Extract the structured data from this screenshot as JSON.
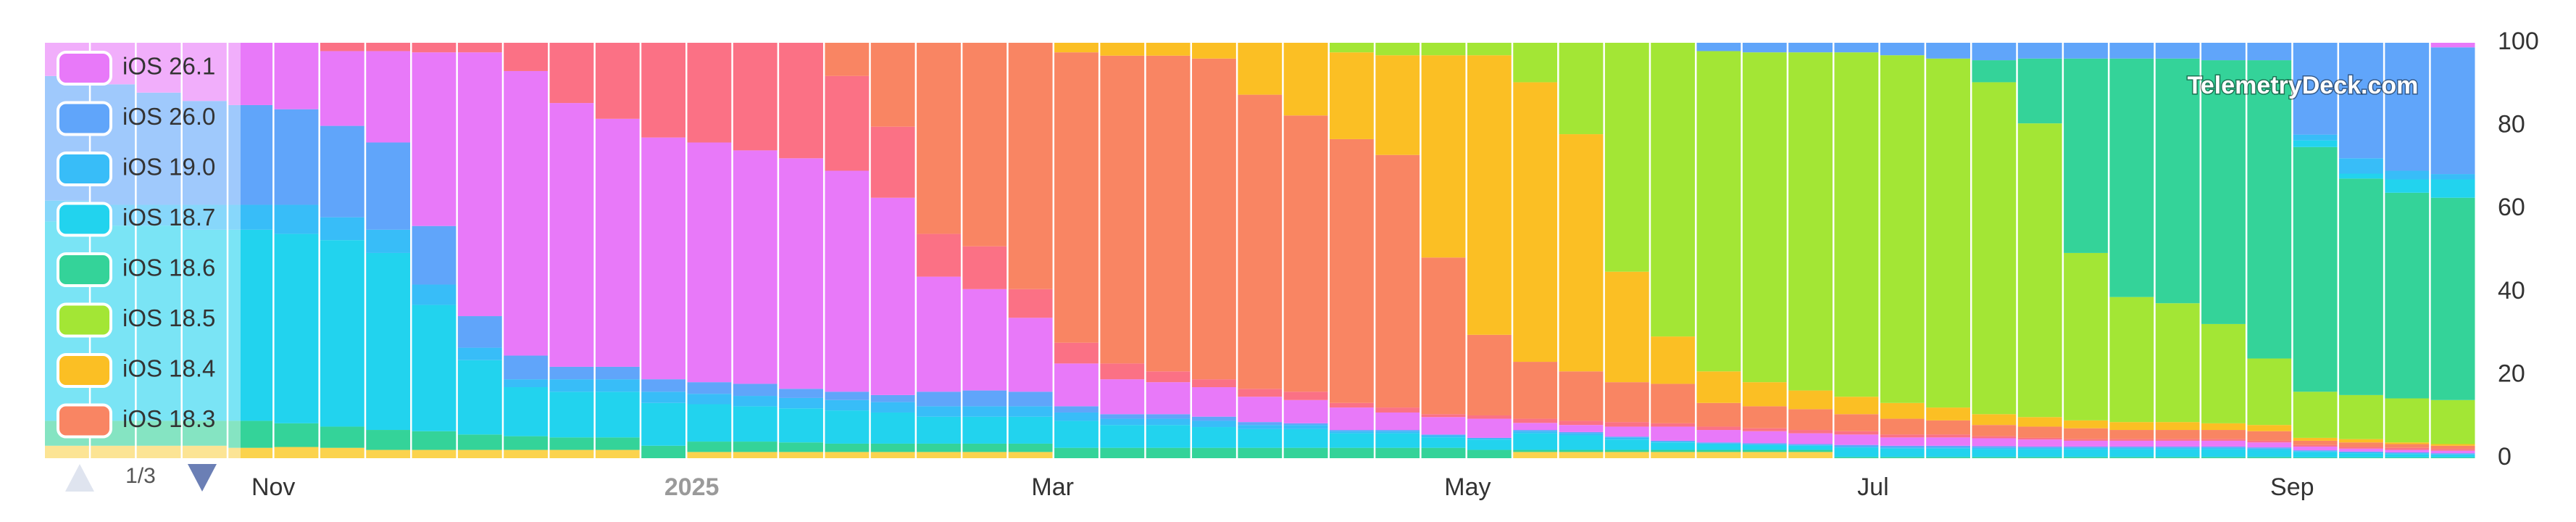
{
  "chart_data": {
    "type": "bar",
    "stacked": true,
    "legend": "top-left",
    "legend_page": "1/3",
    "annotations": [
      "TelemetryDeck.com"
    ],
    "grid": false,
    "ylim": [
      0,
      100
    ],
    "yticks": [
      0,
      20,
      40,
      60,
      80,
      100
    ],
    "categories": [
      null,
      null,
      null,
      null,
      "Nov",
      null,
      null,
      null,
      null,
      null,
      null,
      null,
      null,
      "2025",
      null,
      null,
      null,
      null,
      null,
      null,
      null,
      "Mar",
      null,
      null,
      null,
      null,
      null,
      null,
      null,
      null,
      "May",
      null,
      null,
      null,
      null,
      null,
      null,
      null,
      null,
      "Jul",
      null,
      null,
      null,
      null,
      null,
      null,
      null,
      null,
      "Sep",
      null,
      null,
      null,
      null
    ],
    "series": [
      {
        "name": null,
        "color": "#fbd34d",
        "values": [
          3,
          3,
          3,
          3,
          2.5,
          2.7,
          2.5,
          2,
          2,
          2,
          2,
          2,
          2,
          0,
          1.5,
          1.5,
          1.5,
          1.5,
          1.5,
          1.5,
          1.5,
          1.5,
          0,
          0,
          0,
          0,
          0,
          0,
          0,
          0,
          0,
          0,
          1.5,
          1.5,
          1.5,
          1.5,
          1.5,
          1.5,
          1.5,
          0,
          0,
          0,
          0,
          0,
          0,
          0,
          0,
          0,
          0,
          0,
          0,
          0,
          0
        ]
      },
      {
        "name": null,
        "color": "#34d399",
        "values": [
          6,
          6,
          6,
          6,
          6.5,
          5.7,
          5.1,
          4.8,
          4.5,
          3.7,
          3.3,
          3,
          3,
          3,
          2.5,
          2.5,
          2.3,
          2,
          2,
          2,
          2,
          2,
          2.5,
          2.5,
          2.5,
          2.5,
          2.5,
          2.5,
          2.5,
          2.5,
          2.5,
          2,
          0.5,
          0.5,
          0.5,
          0.5,
          0.5,
          0.5,
          0.5,
          0.3,
          0.3,
          0.3,
          0.3,
          0.3,
          0.3,
          0.3,
          0.3,
          0.3,
          0.3,
          0.2,
          0.2,
          0.2,
          0.2
        ]
      },
      {
        "name": null,
        "color": "#22d3ee",
        "values": [
          48,
          47,
          47,
          46,
          46,
          45.6,
          44.9,
          42.6,
          30.4,
          17.9,
          11.8,
          11,
          11,
          10.3,
          9,
          8.5,
          8.2,
          8,
          7.5,
          6.5,
          6.5,
          6.5,
          6.5,
          5.5,
          5.5,
          5,
          4.5,
          4.5,
          3.5,
          3.5,
          2.5,
          2.5,
          4,
          3.5,
          2.5,
          1.8,
          1.4,
          1.2,
          1,
          2.2,
          2,
          2,
          1.9,
          1.9,
          1.9,
          1.9,
          1.9,
          1.9,
          1.7,
          1.3,
          1,
          0.8,
          0.6
        ]
      },
      {
        "name": null,
        "color": "#38bdf8",
        "values": [
          5,
          5,
          5,
          6,
          6,
          7,
          5.5,
          5.6,
          4.9,
          3,
          1.9,
          3,
          3,
          2.7,
          2.5,
          2.5,
          2.5,
          2.5,
          2.5,
          2.5,
          2.5,
          2.5,
          2,
          1.5,
          1.5,
          1.5,
          1,
          1,
          0.5,
          0.5,
          0.5,
          0.3,
          0.5,
          0.5,
          0.5,
          0.2,
          0.2,
          0.2,
          0.2,
          0.3,
          0.3,
          0.3,
          0.3,
          0.3,
          0.3,
          0.3,
          0.3,
          0.3,
          0.3,
          0.2,
          0.2,
          0.2,
          0.2
        ]
      },
      {
        "name": null,
        "color": "#60a5fa",
        "values": [
          30,
          29,
          27,
          25,
          24,
          23,
          22,
          21,
          14.1,
          7.6,
          5.7,
          3,
          3,
          3,
          2.8,
          2.9,
          2.2,
          2,
          1.7,
          3.5,
          3.8,
          3.5,
          1.5,
          1.1,
          1.1,
          1,
          0.7,
          0.4,
          0.3,
          0.3,
          0.2,
          0.1,
          0.3,
          0.3,
          0.2,
          0.2,
          0.2,
          0.2,
          0.2,
          0.4,
          0.4,
          0.4,
          0.4,
          0.3,
          0.3,
          0.3,
          0.3,
          0.3,
          0.3,
          0.2,
          0.2,
          0.2,
          0.2
        ]
      },
      {
        "name": null,
        "color": "#e879f9",
        "values": [
          8,
          10,
          12,
          14,
          15,
          16,
          18,
          22,
          41.8,
          63.5,
          68.5,
          63.5,
          59.7,
          58.2,
          57.7,
          56.2,
          55.5,
          53.2,
          47.5,
          27.7,
          24.4,
          17.8,
          10.3,
          8.4,
          7.7,
          7.1,
          6.1,
          5.6,
          5.4,
          4.2,
          4.2,
          4.6,
          1.7,
          1.7,
          2.4,
          3.4,
          3,
          2.9,
          2.6,
          2.5,
          2,
          2,
          1.9,
          1.7,
          1.4,
          1.4,
          1.4,
          1.4,
          1.2,
          0.9,
          0.7,
          0.6,
          0.6
        ]
      },
      {
        "name": null,
        "color": "#fb7185",
        "values": [
          0,
          0,
          0,
          0,
          0,
          0,
          2,
          2,
          2.3,
          2.3,
          6.8,
          14.5,
          18.3,
          22.8,
          24,
          25.9,
          27.8,
          22.8,
          17.1,
          10.3,
          10.3,
          6.9,
          5,
          3.8,
          2.6,
          1.9,
          1.9,
          2,
          1.1,
          1.2,
          0.7,
          0.8,
          1,
          1,
          1.1,
          0.8,
          0.8,
          0.7,
          0.8,
          0.8,
          0.7,
          0.7,
          0.5,
          0.4,
          0.4,
          0.4,
          0.4,
          0.4,
          0.4,
          0.4,
          0.4,
          0.5,
          0.4
        ]
      },
      {
        "name": "iOS 18.3",
        "color": "#f98563",
        "values": [
          0,
          0,
          0,
          0,
          0,
          0,
          0,
          0,
          0,
          0,
          0,
          0,
          0,
          0,
          0,
          0,
          0,
          8,
          20.2,
          46,
          49,
          59.3,
          69.9,
          74.1,
          76,
          77.2,
          70.8,
          66.5,
          63.5,
          60.8,
          37.7,
          19.4,
          13.7,
          11.9,
          9.6,
          9.5,
          5.7,
          5.3,
          5,
          4.1,
          3.8,
          3.4,
          2.7,
          2.7,
          2.6,
          2.2,
          2.2,
          2.2,
          2.3,
          1,
          1.1,
          0.9,
          0.8
        ]
      },
      {
        "name": "iOS 18.4",
        "color": "#fbbf24",
        "values": [
          0,
          0,
          0,
          0,
          0,
          0,
          0,
          0,
          0,
          0,
          0,
          0,
          0,
          0,
          0,
          0,
          0,
          0,
          0,
          0,
          0,
          0,
          2.3,
          3.1,
          3.1,
          3.8,
          12.5,
          17.5,
          20.9,
          24,
          48.7,
          67.3,
          67.3,
          57.1,
          26.6,
          11.4,
          7.6,
          5.8,
          4.5,
          4.2,
          3.8,
          3.1,
          2.6,
          2.3,
          1.9,
          1.9,
          1.9,
          1.6,
          1.5,
          0.7,
          0.8,
          0.4,
          0.4
        ]
      },
      {
        "name": "iOS 18.5",
        "color": "#a3e635",
        "values": [
          0,
          0,
          0,
          0,
          0,
          0,
          0,
          0,
          0,
          0,
          0,
          0,
          0,
          0,
          0,
          0,
          0,
          0,
          0,
          0,
          0,
          0,
          0,
          0,
          0,
          0,
          0,
          0,
          2.3,
          3,
          3,
          3,
          9.5,
          22,
          55.1,
          70.7,
          77.1,
          79.4,
          81.4,
          82.9,
          83.7,
          84,
          79.9,
          70.7,
          40.3,
          30.1,
          28.6,
          23.9,
          16,
          11.1,
          10.6,
          10.6,
          10.6
        ]
      },
      {
        "name": "iOS 18.6",
        "color": "#34d399",
        "values": [
          0,
          0,
          0,
          0,
          0,
          0,
          0,
          0,
          0,
          0,
          0,
          0,
          0,
          0,
          0,
          0,
          0,
          0,
          0,
          0,
          0,
          0,
          0,
          0,
          0,
          0,
          0,
          0,
          0,
          0,
          0,
          0,
          0,
          0,
          0,
          0,
          0,
          0,
          0,
          0,
          0,
          0,
          5.3,
          15.6,
          46.8,
          57.4,
          58.9,
          63.5,
          71.8,
          58.9,
          52.1,
          49.5,
          48.7
        ]
      },
      {
        "name": "iOS 18.7",
        "color": "#22d3ee",
        "values": [
          0,
          0,
          0,
          0,
          0,
          0,
          0,
          0,
          0,
          0,
          0,
          0,
          0,
          0,
          0,
          0,
          0,
          0,
          0,
          0,
          0,
          0,
          0,
          0,
          0,
          0,
          0,
          0,
          0,
          0,
          0,
          0,
          0,
          0,
          0,
          0,
          0,
          0,
          0,
          0,
          0,
          0,
          0,
          0,
          0,
          0,
          0,
          0,
          0,
          1.6,
          1.2,
          3.2,
          4.4
        ]
      },
      {
        "name": "iOS 19.0",
        "color": "#38bdf8",
        "values": [
          0,
          0,
          0,
          0,
          0,
          0,
          0,
          0,
          0,
          0,
          0,
          0,
          0,
          0,
          0,
          0,
          0,
          0,
          0,
          0,
          0,
          0,
          0,
          0,
          0,
          0,
          0,
          0,
          0,
          0,
          0,
          0,
          0,
          0,
          0,
          0,
          0,
          0,
          0,
          0,
          0,
          0,
          0,
          0,
          0,
          0,
          0,
          0,
          0,
          1.4,
          3.7,
          2.1,
          1.3
        ]
      },
      {
        "name": "iOS 26.0",
        "color": "#60a5fa",
        "values": [
          0,
          0,
          0,
          0,
          0,
          0,
          0,
          0,
          0,
          0,
          0,
          0,
          0,
          0,
          0,
          0,
          0,
          0,
          0,
          0,
          0,
          0,
          0,
          0,
          0,
          0,
          0,
          0,
          0,
          0,
          0,
          0,
          0,
          0,
          0,
          0,
          2,
          2.3,
          2.3,
          2.3,
          3,
          3.8,
          4.2,
          3.8,
          3.8,
          3.8,
          3.8,
          4.2,
          4.2,
          22.1,
          27.8,
          30.8,
          30.5
        ]
      },
      {
        "name": "iOS 26.1",
        "color": "#e879f9",
        "values": [
          0,
          0,
          0,
          0,
          0,
          0,
          0,
          0,
          0,
          0,
          0,
          0,
          0,
          0,
          0,
          0,
          0,
          0,
          0,
          0,
          0,
          0,
          0,
          0,
          0,
          0,
          0,
          0,
          0,
          0,
          0,
          0,
          0,
          0,
          0,
          0,
          0,
          0,
          0,
          0,
          0,
          0,
          0,
          0,
          0,
          0,
          0,
          0,
          0,
          0,
          0,
          0,
          1.1
        ]
      }
    ]
  }
}
